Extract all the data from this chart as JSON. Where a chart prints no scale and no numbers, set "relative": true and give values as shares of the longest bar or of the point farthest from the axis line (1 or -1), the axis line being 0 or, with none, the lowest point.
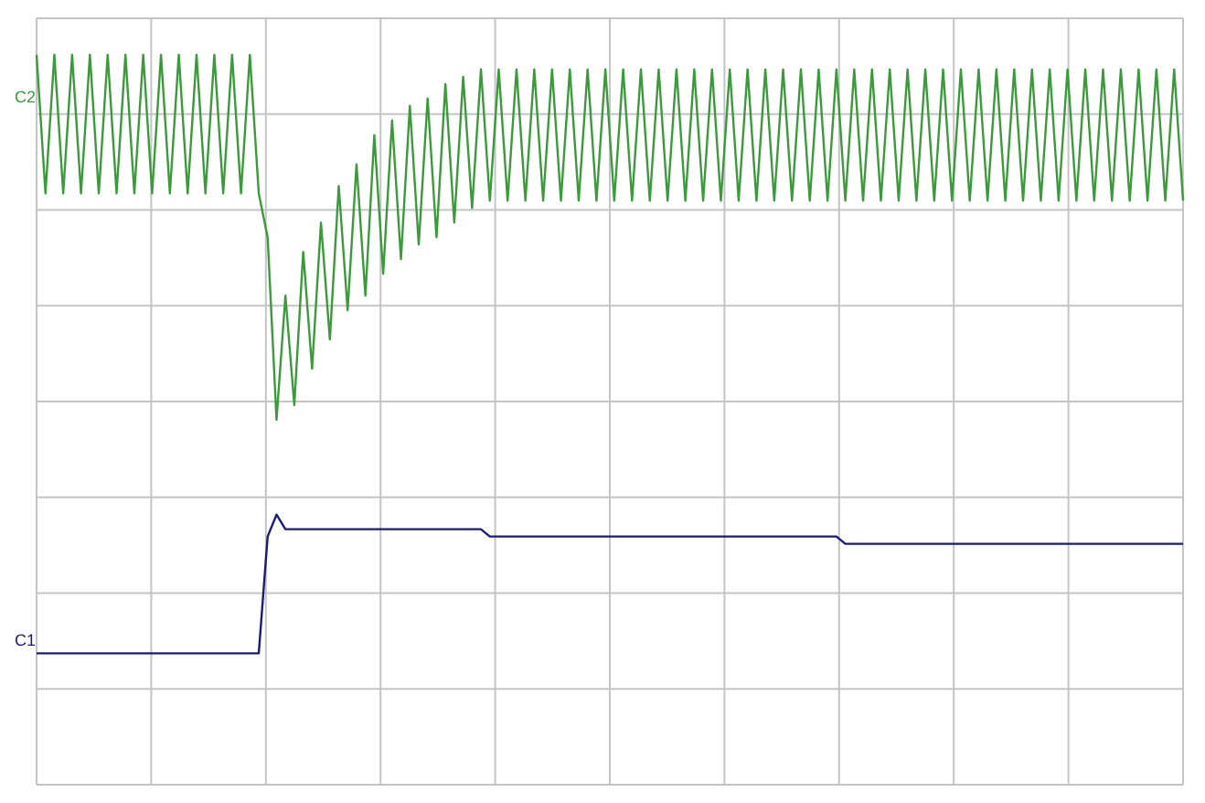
{
  "chart_data": {
    "type": "line",
    "relative": true,
    "grid": true,
    "marker": "none",
    "categories": [
      null,
      null,
      null,
      null,
      null,
      null,
      null,
      null,
      null,
      null,
      null,
      null,
      null,
      null,
      null,
      null,
      null,
      null,
      null,
      null,
      null,
      null,
      null,
      null,
      null,
      null,
      null,
      null,
      null,
      null,
      null,
      null,
      null,
      null,
      null,
      null,
      null,
      null,
      null,
      null,
      null,
      null,
      null,
      null,
      null,
      null,
      null,
      null,
      null,
      null,
      null,
      null,
      null,
      null,
      null,
      null,
      null,
      null,
      null,
      null,
      null,
      null,
      null,
      null,
      null,
      null,
      null,
      null,
      null,
      null,
      null,
      null,
      null,
      null,
      null,
      null,
      null,
      null,
      null,
      null,
      null,
      null,
      null,
      null,
      null,
      null,
      null,
      null,
      null,
      null,
      null,
      null,
      null,
      null,
      null,
      null,
      null,
      null,
      null,
      null,
      null,
      null,
      null,
      null,
      null,
      null,
      null,
      null,
      null,
      null,
      null,
      null,
      null,
      null,
      null,
      null,
      null,
      null,
      null,
      null,
      null,
      null,
      null,
      null,
      null,
      null,
      null,
      null,
      null,
      null
    ],
    "series": [
      {
        "name": "C2",
        "color": "#3c9a3c",
        "values": [
          1,
          0.81,
          1,
          0.81,
          1,
          0.81,
          1,
          0.81,
          1,
          0.81,
          1,
          0.81,
          1,
          0.81,
          1,
          0.81,
          1,
          0.81,
          1,
          0.81,
          1,
          0.81,
          1,
          0.81,
          1,
          0.81,
          0.75,
          0.5,
          0.67,
          0.52,
          0.73,
          0.57,
          0.77,
          0.61,
          0.82,
          0.65,
          0.85,
          0.67,
          0.89,
          0.7,
          0.91,
          0.72,
          0.93,
          0.74,
          0.94,
          0.75,
          0.96,
          0.77,
          0.97,
          0.79,
          0.98,
          0.8,
          0.98,
          0.8,
          0.98,
          0.8,
          0.98,
          0.8,
          0.98,
          0.8,
          0.98,
          0.8,
          0.98,
          0.8,
          0.98,
          0.8,
          0.98,
          0.8,
          0.98,
          0.8,
          0.98,
          0.8,
          0.98,
          0.8,
          0.98,
          0.8,
          0.98,
          0.8,
          0.98,
          0.8,
          0.98,
          0.8,
          0.98,
          0.8,
          0.98,
          0.8,
          0.98,
          0.8,
          0.98,
          0.8,
          0.98,
          0.8,
          0.98,
          0.8,
          0.98,
          0.8,
          0.98,
          0.8,
          0.98,
          0.8,
          0.98,
          0.8,
          0.98,
          0.8,
          0.98,
          0.8,
          0.98,
          0.8,
          0.98,
          0.8,
          0.98,
          0.8,
          0.98,
          0.8,
          0.98,
          0.8,
          0.98,
          0.8,
          0.98,
          0.8,
          0.98,
          0.8,
          0.98,
          0.8,
          0.98,
          0.8,
          0.98,
          0.8,
          0.98,
          0.8
        ]
      },
      {
        "name": "C1",
        "color": "#1c1c70",
        "values": [
          0.18,
          0.18,
          0.18,
          0.18,
          0.18,
          0.18,
          0.18,
          0.18,
          0.18,
          0.18,
          0.18,
          0.18,
          0.18,
          0.18,
          0.18,
          0.18,
          0.18,
          0.18,
          0.18,
          0.18,
          0.18,
          0.18,
          0.18,
          0.18,
          0.18,
          0.18,
          0.34,
          0.37,
          0.35,
          0.35,
          0.35,
          0.35,
          0.35,
          0.35,
          0.35,
          0.35,
          0.35,
          0.35,
          0.35,
          0.35,
          0.35,
          0.35,
          0.35,
          0.35,
          0.35,
          0.35,
          0.35,
          0.35,
          0.35,
          0.35,
          0.35,
          0.34,
          0.34,
          0.34,
          0.34,
          0.34,
          0.34,
          0.34,
          0.34,
          0.34,
          0.34,
          0.34,
          0.34,
          0.34,
          0.34,
          0.34,
          0.34,
          0.34,
          0.34,
          0.34,
          0.34,
          0.34,
          0.34,
          0.34,
          0.34,
          0.34,
          0.34,
          0.34,
          0.34,
          0.34,
          0.34,
          0.34,
          0.34,
          0.34,
          0.34,
          0.34,
          0.34,
          0.34,
          0.34,
          0.34,
          0.34,
          0.33,
          0.33,
          0.33,
          0.33,
          0.33,
          0.33,
          0.33,
          0.33,
          0.33,
          0.33,
          0.33,
          0.33,
          0.33,
          0.33,
          0.33,
          0.33,
          0.33,
          0.33,
          0.33,
          0.33,
          0.33,
          0.33,
          0.33,
          0.33,
          0.33,
          0.33,
          0.33,
          0.33,
          0.33,
          0.33,
          0.33,
          0.33,
          0.33,
          0.33,
          0.33,
          0.33,
          0.33,
          0.33,
          0.33
        ]
      }
    ]
  }
}
